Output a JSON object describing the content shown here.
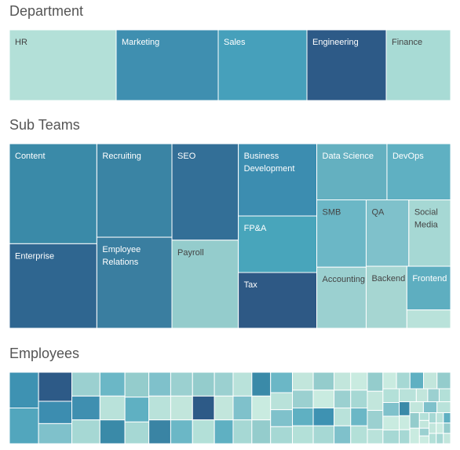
{
  "chart_data": [
    {
      "type": "treemap",
      "title": "Department",
      "categories": [
        "HR",
        "Marketing",
        "Sales",
        "Engineering",
        "Finance"
      ],
      "values": [
        136,
        130,
        113,
        101,
        82
      ],
      "colors": [
        "#b3e0d8",
        "#3f8fb0",
        "#46a0bb",
        "#2d5a87",
        "#a8dbd5"
      ]
    },
    {
      "type": "treemap",
      "title": "Sub Teams",
      "categories": [
        "Content",
        "Enterprise",
        "Recruiting",
        "Employee Relations",
        "SEO",
        "Payroll",
        "Business Development",
        "FP&A",
        "Tax",
        "Data Science",
        "DevOps",
        "SMB",
        "Accounting",
        "QA",
        "Social Media",
        "Backend",
        "Frontend",
        null
      ],
      "values": [
        142,
        120,
        114,
        111,
        104,
        95,
        92,
        72,
        71,
        64,
        58,
        54,
        49,
        46,
        45,
        41,
        31,
        13
      ],
      "colors": [
        "#3a8aa8",
        "#2f6690",
        "#3a84a4",
        "#3a7ea0",
        "#336f97",
        "#94cccc",
        "#3c8db0",
        "#48a5bb",
        "#2e5985",
        "#64b0c0",
        "#5fb0c2",
        "#6bb7c6",
        "#9bd0d0",
        "#7fc1cb",
        "#a6d8d4",
        "#a6d6d2",
        "#5eaec0",
        "#b9e2da"
      ]
    },
    {
      "type": "treemap",
      "title": "Employees",
      "values": [
        14,
        14,
        13,
        10,
        9,
        9,
        9,
        9,
        8,
        8,
        8,
        8,
        8,
        7,
        7,
        7,
        7,
        7,
        7,
        7,
        7,
        7,
        7,
        6,
        6,
        6,
        6,
        6,
        6,
        6,
        6,
        6,
        6,
        5,
        5,
        5,
        5,
        5,
        5,
        5,
        5,
        5,
        5,
        5,
        4,
        4,
        4,
        4,
        4,
        4,
        4,
        4,
        4,
        4,
        4,
        3,
        3,
        3,
        3,
        3,
        3,
        3,
        3,
        3,
        3,
        3,
        2,
        2,
        2,
        2,
        2,
        2,
        2,
        2,
        2,
        2,
        2,
        1,
        1,
        1,
        1,
        1,
        1,
        1,
        1,
        1,
        1,
        1,
        1,
        1
      ],
      "colors": [
        "#3e92b2",
        "#52a6bd",
        "#2d5a87",
        "#3c8db0",
        "#7fc1cb",
        "#9bd0d0",
        "#3f8fb0",
        "#a6d8d4",
        "#6bb7c6",
        "#b9e2da",
        "#3a8aa8",
        "#94cccc",
        "#5fb0c2",
        "#a6d8d4",
        "#7fc1cb",
        "#b9e2da",
        "#3a84a4",
        "#9bd0d0",
        "#c2e6dc",
        "#6bb7c6",
        "#94cccc",
        "#2d5a87",
        "#b3e0d8",
        "#9bd0d0",
        "#c2e6dc",
        "#5fb0c2",
        "#b9e2da",
        "#7fc1cb",
        "#a6d8d4",
        "#3a8aa8",
        "#c9ebe0",
        "#94cccc",
        "#6bb7c6",
        "#b9e2da",
        "#7fc1cb",
        "#a6d8d4",
        "#c2e6dc",
        "#9bd0d0",
        "#5fb0c2",
        "#b3e0d8",
        "#94cccc",
        "#c9ebe0",
        "#3e92b2",
        "#a6d8d4",
        "#c2e6dc",
        "#9bd0d0",
        "#b9e2da",
        "#7fc1cb",
        "#c9ebe0",
        "#a6d8d4",
        "#6bb7c6",
        "#b3e0d8",
        "#94cccc",
        "#c2e6dc",
        "#9bd0d0",
        "#b9e2da",
        "#c9ebe0",
        "#a6d8d4",
        "#5fb0c2",
        "#c2e6dc",
        "#94cccc",
        "#b3e0d8",
        "#7fc1cb",
        "#c9ebe0",
        "#a6d8d4",
        "#b9e2da",
        "#c2e6dc",
        "#9bd0d0",
        "#b3e0d8",
        "#3a8aa8",
        "#c9ebe0",
        "#a6d8d4",
        "#c2e6dc",
        "#7fc1cb",
        "#b9e2da",
        "#94cccc",
        "#c9ebe0",
        "#b3e0d8",
        "#c2e6dc",
        "#9bd0d0",
        "#c9ebe0",
        "#a6d8d4",
        "#b9e2da",
        "#5fb0c2",
        "#c2e6dc",
        "#b3e0d8",
        "#c9ebe0",
        "#94cccc",
        "#a6d8d4",
        "#c2e6dc"
      ]
    }
  ]
}
